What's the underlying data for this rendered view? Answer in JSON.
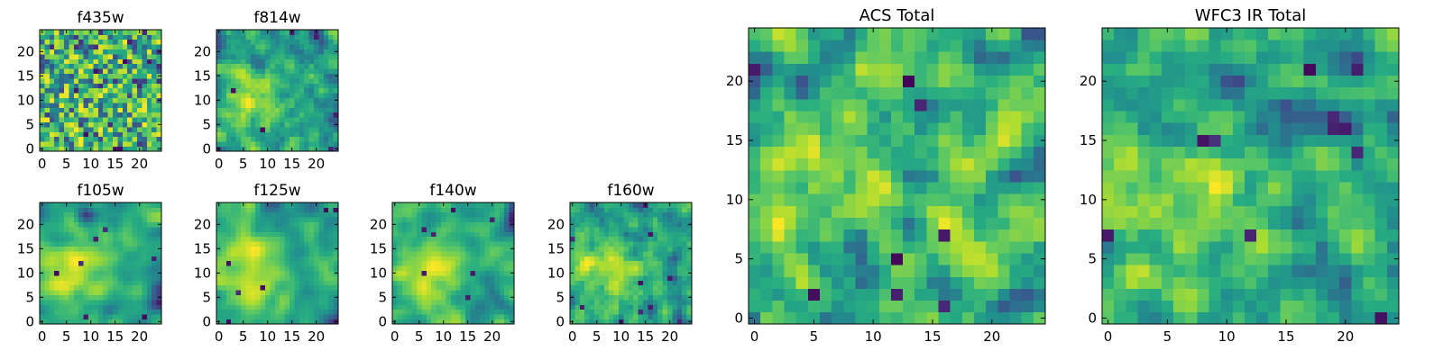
{
  "figure": {
    "panels": [
      {
        "key": "f435w",
        "title": "f435w",
        "xticks": [
          "0",
          "5",
          "10",
          "15",
          "20"
        ],
        "yticks": [
          "0",
          "5",
          "10",
          "15",
          "20"
        ]
      },
      {
        "key": "f814w",
        "title": "f814w",
        "xticks": [
          "0",
          "5",
          "10",
          "15",
          "20"
        ],
        "yticks": [
          "0",
          "5",
          "10",
          "15",
          "20"
        ]
      },
      {
        "key": "f105w",
        "title": "f105w",
        "xticks": [
          "0",
          "5",
          "10",
          "15",
          "20"
        ],
        "yticks": [
          "0",
          "5",
          "10",
          "15",
          "20"
        ]
      },
      {
        "key": "f125w",
        "title": "f125w",
        "xticks": [
          "0",
          "5",
          "10",
          "15",
          "20"
        ],
        "yticks": [
          "0",
          "5",
          "10",
          "15",
          "20"
        ]
      },
      {
        "key": "f140w",
        "title": "f140w",
        "xticks": [
          "0",
          "5",
          "10",
          "15",
          "20"
        ],
        "yticks": [
          "0",
          "5",
          "10",
          "15",
          "20"
        ]
      },
      {
        "key": "f160w",
        "title": "f160w",
        "xticks": [
          "0",
          "5",
          "10",
          "15",
          "20"
        ],
        "yticks": [
          "0",
          "5",
          "10",
          "15",
          "20"
        ]
      },
      {
        "key": "acs_total",
        "title": "ACS Total",
        "xticks": [
          "0",
          "5",
          "10",
          "15",
          "20"
        ],
        "yticks": [
          "0",
          "5",
          "10",
          "15",
          "20"
        ]
      },
      {
        "key": "wfc3_total",
        "title": "WFC3 IR Total",
        "xticks": [
          "0",
          "5",
          "10",
          "15",
          "20"
        ],
        "yticks": [
          "0",
          "5",
          "10",
          "15",
          "20"
        ]
      }
    ]
  },
  "chart_data": [
    {
      "type": "heatmap",
      "title": "f435w",
      "grid_size": [
        25,
        25
      ],
      "xlim": [
        -0.5,
        24.5
      ],
      "ylim": [
        -0.5,
        24.5
      ],
      "colormap": "viridis",
      "seed": 11,
      "smooth": 0,
      "blob": 0.05
    },
    {
      "type": "heatmap",
      "title": "f814w",
      "grid_size": [
        25,
        25
      ],
      "xlim": [
        -0.5,
        24.5
      ],
      "ylim": [
        -0.5,
        24.5
      ],
      "colormap": "viridis",
      "seed": 23,
      "smooth": 1,
      "blob": 0.35
    },
    {
      "type": "heatmap",
      "title": "f105w",
      "grid_size": [
        25,
        25
      ],
      "xlim": [
        -0.5,
        24.5
      ],
      "ylim": [
        -0.5,
        24.5
      ],
      "colormap": "viridis",
      "seed": 37,
      "smooth": 2,
      "blob": 0.4
    },
    {
      "type": "heatmap",
      "title": "f125w",
      "grid_size": [
        25,
        25
      ],
      "xlim": [
        -0.5,
        24.5
      ],
      "ylim": [
        -0.5,
        24.5
      ],
      "colormap": "viridis",
      "seed": 41,
      "smooth": 2,
      "blob": 0.35
    },
    {
      "type": "heatmap",
      "title": "f140w",
      "grid_size": [
        25,
        25
      ],
      "xlim": [
        -0.5,
        24.5
      ],
      "ylim": [
        -0.5,
        24.5
      ],
      "colormap": "viridis",
      "seed": 53,
      "smooth": 2,
      "blob": 0.35
    },
    {
      "type": "heatmap",
      "title": "f160w",
      "grid_size": [
        25,
        25
      ],
      "xlim": [
        -0.5,
        24.5
      ],
      "ylim": [
        -0.5,
        24.5
      ],
      "colormap": "viridis",
      "seed": 67,
      "smooth": 1,
      "blob": 0.35
    },
    {
      "type": "heatmap",
      "title": "ACS Total",
      "grid_size": [
        25,
        25
      ],
      "xlim": [
        -0.5,
        24.5
      ],
      "ylim": [
        -0.5,
        24.5
      ],
      "colormap": "viridis",
      "seed": 79,
      "smooth": 1,
      "blob": 0.15
    },
    {
      "type": "heatmap",
      "title": "WFC3 IR Total",
      "grid_size": [
        25,
        25
      ],
      "xlim": [
        -0.5,
        24.5
      ],
      "ylim": [
        -0.5,
        24.5
      ],
      "colormap": "viridis",
      "seed": 97,
      "smooth": 1,
      "blob": 0.2
    }
  ]
}
